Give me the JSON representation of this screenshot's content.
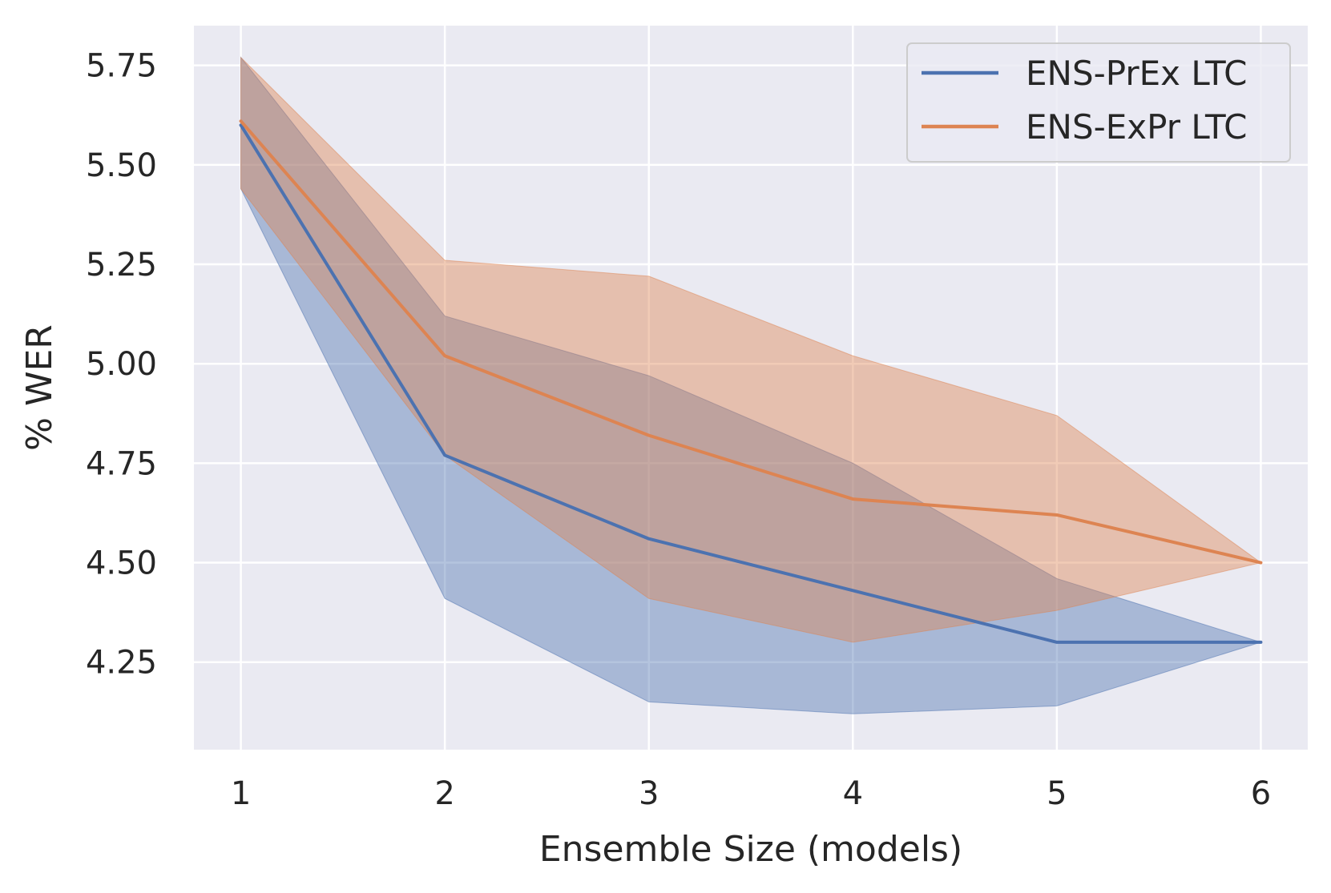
{
  "chart_data": {
    "type": "line",
    "xlabel": "Ensemble Size (models)",
    "ylabel": "% WER",
    "x": [
      1,
      2,
      3,
      4,
      5,
      6
    ],
    "xticks": [
      "1",
      "2",
      "3",
      "4",
      "5",
      "6"
    ],
    "yticks": [
      "4.25",
      "4.50",
      "4.75",
      "5.00",
      "5.25",
      "5.50",
      "5.75"
    ],
    "ytick_values": [
      4.25,
      4.5,
      4.75,
      5.0,
      5.25,
      5.5,
      5.75
    ],
    "xlim": [
      0.77,
      6.23
    ],
    "ylim": [
      4.03,
      5.85
    ],
    "grid": true,
    "legend_position": "top-right",
    "series": [
      {
        "name": "ENS-PrEx LTC",
        "color": "#4c72b0",
        "values": [
          5.6,
          4.77,
          4.56,
          4.43,
          4.3,
          4.3
        ],
        "lower": [
          5.44,
          4.41,
          4.15,
          4.12,
          4.14,
          4.3
        ],
        "upper": [
          5.77,
          5.12,
          4.97,
          4.75,
          4.46,
          4.3
        ]
      },
      {
        "name": "ENS-ExPr LTC",
        "color": "#dd8452",
        "values": [
          5.61,
          5.02,
          4.82,
          4.66,
          4.62,
          4.5
        ],
        "lower": [
          5.44,
          4.77,
          4.41,
          4.3,
          4.38,
          4.5
        ],
        "upper": [
          5.77,
          5.26,
          5.22,
          5.02,
          4.87,
          4.5
        ]
      }
    ]
  }
}
